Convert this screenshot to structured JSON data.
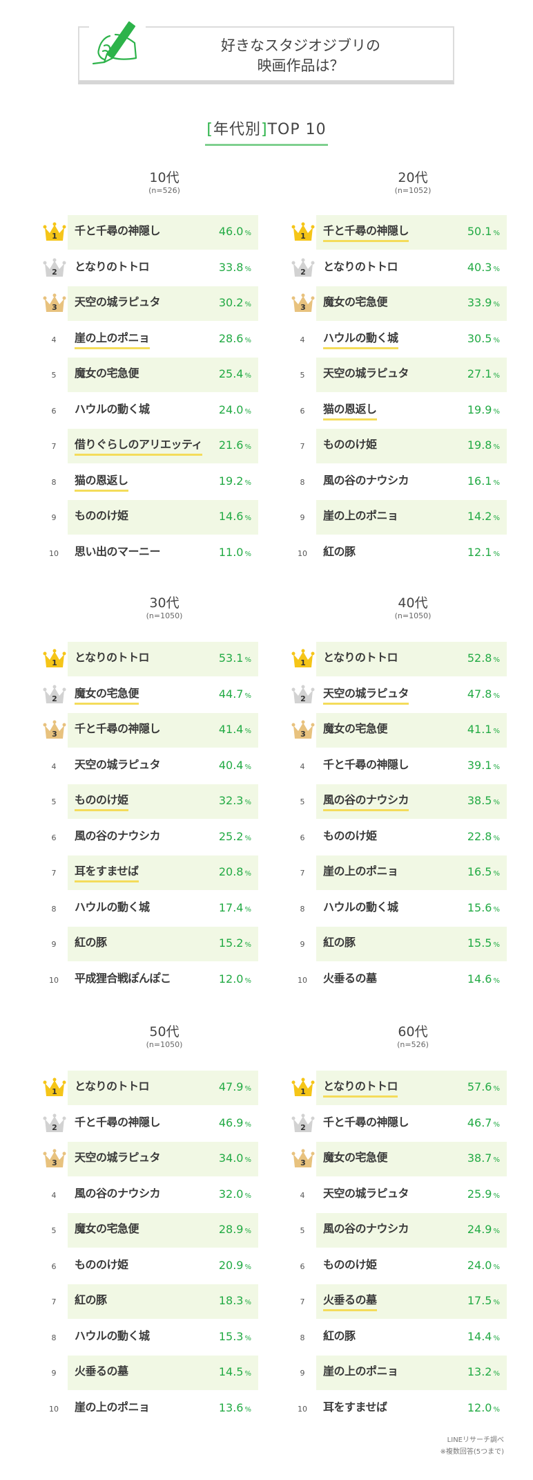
{
  "header": {
    "title_line1": "好きなスタジオジブリの",
    "title_line2": "映画作品は？",
    "icon": "hand-writing-pen-icon",
    "accent_color": "#2db34a"
  },
  "heading": {
    "bracket_open": "[",
    "label": "年代別",
    "bracket_close": "]",
    "suffix": "TOP 10"
  },
  "colors": {
    "percent": "#22aa44",
    "row_shade": "#f1f8e4",
    "highlight_underline": "#f4dc5a",
    "gold": "#f5c518",
    "silver": "#d2d2d2",
    "bronze": "#e8c27e"
  },
  "sections": [
    {
      "age": "10代",
      "n": "(n=526)",
      "items": [
        {
          "rank": "1",
          "title": "千と千尋の神隠し",
          "pct": "46.0",
          "hl": false
        },
        {
          "rank": "2",
          "title": "となりのトトロ",
          "pct": "33.8",
          "hl": false
        },
        {
          "rank": "3",
          "title": "天空の城ラピュタ",
          "pct": "30.2",
          "hl": false
        },
        {
          "rank": "4",
          "title": "崖の上のポニョ",
          "pct": "28.6",
          "hl": true
        },
        {
          "rank": "5",
          "title": "魔女の宅急便",
          "pct": "25.4",
          "hl": false
        },
        {
          "rank": "6",
          "title": "ハウルの動く城",
          "pct": "24.0",
          "hl": false
        },
        {
          "rank": "7",
          "title": "借りぐらしのアリエッティ",
          "pct": "21.6",
          "hl": true
        },
        {
          "rank": "8",
          "title": "猫の恩返し",
          "pct": "19.2",
          "hl": true
        },
        {
          "rank": "9",
          "title": "もののけ姫",
          "pct": "14.6",
          "hl": false
        },
        {
          "rank": "10",
          "title": "思い出のマーニー",
          "pct": "11.0",
          "hl": false
        }
      ]
    },
    {
      "age": "20代",
      "n": "(n=1052)",
      "items": [
        {
          "rank": "1",
          "title": "千と千尋の神隠し",
          "pct": "50.1",
          "hl": true
        },
        {
          "rank": "2",
          "title": "となりのトトロ",
          "pct": "40.3",
          "hl": false
        },
        {
          "rank": "3",
          "title": "魔女の宅急便",
          "pct": "33.9",
          "hl": false
        },
        {
          "rank": "4",
          "title": "ハウルの動く城",
          "pct": "30.5",
          "hl": true
        },
        {
          "rank": "5",
          "title": "天空の城ラピュタ",
          "pct": "27.1",
          "hl": false
        },
        {
          "rank": "6",
          "title": "猫の恩返し",
          "pct": "19.9",
          "hl": true
        },
        {
          "rank": "7",
          "title": "もののけ姫",
          "pct": "19.8",
          "hl": false
        },
        {
          "rank": "8",
          "title": "風の谷のナウシカ",
          "pct": "16.1",
          "hl": false
        },
        {
          "rank": "9",
          "title": "崖の上のポニョ",
          "pct": "14.2",
          "hl": false
        },
        {
          "rank": "10",
          "title": "紅の豚",
          "pct": "12.1",
          "hl": false
        }
      ]
    },
    {
      "age": "30代",
      "n": "(n=1050)",
      "items": [
        {
          "rank": "1",
          "title": "となりのトトロ",
          "pct": "53.1",
          "hl": false
        },
        {
          "rank": "2",
          "title": "魔女の宅急便",
          "pct": "44.7",
          "hl": true
        },
        {
          "rank": "3",
          "title": "千と千尋の神隠し",
          "pct": "41.4",
          "hl": false
        },
        {
          "rank": "4",
          "title": "天空の城ラピュタ",
          "pct": "40.4",
          "hl": false
        },
        {
          "rank": "5",
          "title": "もののけ姫",
          "pct": "32.3",
          "hl": true
        },
        {
          "rank": "6",
          "title": "風の谷のナウシカ",
          "pct": "25.2",
          "hl": false
        },
        {
          "rank": "7",
          "title": "耳をすませば",
          "pct": "20.8",
          "hl": true
        },
        {
          "rank": "8",
          "title": "ハウルの動く城",
          "pct": "17.4",
          "hl": false
        },
        {
          "rank": "9",
          "title": "紅の豚",
          "pct": "15.2",
          "hl": false
        },
        {
          "rank": "10",
          "title": "平成狸合戦ぽんぽこ",
          "pct": "12.0",
          "hl": false
        }
      ]
    },
    {
      "age": "40代",
      "n": "(n=1050)",
      "items": [
        {
          "rank": "1",
          "title": "となりのトトロ",
          "pct": "52.8",
          "hl": false
        },
        {
          "rank": "2",
          "title": "天空の城ラピュタ",
          "pct": "47.8",
          "hl": true
        },
        {
          "rank": "3",
          "title": "魔女の宅急便",
          "pct": "41.1",
          "hl": false
        },
        {
          "rank": "4",
          "title": "千と千尋の神隠し",
          "pct": "39.1",
          "hl": false
        },
        {
          "rank": "5",
          "title": "風の谷のナウシカ",
          "pct": "38.5",
          "hl": true
        },
        {
          "rank": "6",
          "title": "もののけ姫",
          "pct": "22.8",
          "hl": false
        },
        {
          "rank": "7",
          "title": "崖の上のポニョ",
          "pct": "16.5",
          "hl": false
        },
        {
          "rank": "8",
          "title": "ハウルの動く城",
          "pct": "15.6",
          "hl": false
        },
        {
          "rank": "9",
          "title": "紅の豚",
          "pct": "15.5",
          "hl": false
        },
        {
          "rank": "10",
          "title": "火垂るの墓",
          "pct": "14.6",
          "hl": false
        }
      ]
    },
    {
      "age": "50代",
      "n": "(n=1050)",
      "items": [
        {
          "rank": "1",
          "title": "となりのトトロ",
          "pct": "47.9",
          "hl": false
        },
        {
          "rank": "2",
          "title": "千と千尋の神隠し",
          "pct": "46.9",
          "hl": false
        },
        {
          "rank": "3",
          "title": "天空の城ラピュタ",
          "pct": "34.0",
          "hl": false
        },
        {
          "rank": "4",
          "title": "風の谷のナウシカ",
          "pct": "32.0",
          "hl": false
        },
        {
          "rank": "5",
          "title": "魔女の宅急便",
          "pct": "28.9",
          "hl": false
        },
        {
          "rank": "6",
          "title": "もののけ姫",
          "pct": "20.9",
          "hl": false
        },
        {
          "rank": "7",
          "title": "紅の豚",
          "pct": "18.3",
          "hl": false
        },
        {
          "rank": "8",
          "title": "ハウルの動く城",
          "pct": "15.3",
          "hl": false
        },
        {
          "rank": "9",
          "title": "火垂るの墓",
          "pct": "14.5",
          "hl": false
        },
        {
          "rank": "10",
          "title": "崖の上のポニョ",
          "pct": "13.6",
          "hl": false
        }
      ]
    },
    {
      "age": "60代",
      "n": "(n=526)",
      "items": [
        {
          "rank": "1",
          "title": "となりのトトロ",
          "pct": "57.6",
          "hl": true
        },
        {
          "rank": "2",
          "title": "千と千尋の神隠し",
          "pct": "46.7",
          "hl": false
        },
        {
          "rank": "3",
          "title": "魔女の宅急便",
          "pct": "38.7",
          "hl": false
        },
        {
          "rank": "4",
          "title": "天空の城ラピュタ",
          "pct": "25.9",
          "hl": false
        },
        {
          "rank": "5",
          "title": "風の谷のナウシカ",
          "pct": "24.9",
          "hl": false
        },
        {
          "rank": "6",
          "title": "もののけ姫",
          "pct": "24.0",
          "hl": false
        },
        {
          "rank": "7",
          "title": "火垂るの墓",
          "pct": "17.5",
          "hl": true
        },
        {
          "rank": "8",
          "title": "紅の豚",
          "pct": "14.4",
          "hl": false
        },
        {
          "rank": "9",
          "title": "崖の上のポニョ",
          "pct": "13.2",
          "hl": false
        },
        {
          "rank": "10",
          "title": "耳をすませば",
          "pct": "12.0",
          "hl": false
        }
      ]
    }
  ],
  "percent_unit": "%",
  "footer": {
    "source": "LINEリサーチ調べ",
    "note": "※複数回答(5つまで)"
  },
  "chart_data": {
    "type": "table",
    "title": "好きなスタジオジブリの映画作品は？ [年代別]TOP 10",
    "columns": [
      "rank",
      "title",
      "percent"
    ],
    "unit": "%",
    "groups": [
      {
        "name": "10代",
        "n": 526,
        "titles": [
          "千と千尋の神隠し",
          "となりのトトロ",
          "天空の城ラピュタ",
          "崖の上のポニョ",
          "魔女の宅急便",
          "ハウルの動く城",
          "借りぐらしのアリエッティ",
          "猫の恩返し",
          "もののけ姫",
          "思い出のマーニー"
        ],
        "values": [
          46.0,
          33.8,
          30.2,
          28.6,
          25.4,
          24.0,
          21.6,
          19.2,
          14.6,
          11.0
        ]
      },
      {
        "name": "20代",
        "n": 1052,
        "titles": [
          "千と千尋の神隠し",
          "となりのトトロ",
          "魔女の宅急便",
          "ハウルの動く城",
          "天空の城ラピュタ",
          "猫の恩返し",
          "もののけ姫",
          "風の谷のナウシカ",
          "崖の上のポニョ",
          "紅の豚"
        ],
        "values": [
          50.1,
          40.3,
          33.9,
          30.5,
          27.1,
          19.9,
          19.8,
          16.1,
          14.2,
          12.1
        ]
      },
      {
        "name": "30代",
        "n": 1050,
        "titles": [
          "となりのトトロ",
          "魔女の宅急便",
          "千と千尋の神隠し",
          "天空の城ラピュタ",
          "もののけ姫",
          "風の谷のナウシカ",
          "耳をすませば",
          "ハウルの動く城",
          "紅の豚",
          "平成狸合戦ぽんぽこ"
        ],
        "values": [
          53.1,
          44.7,
          41.4,
          40.4,
          32.3,
          25.2,
          20.8,
          17.4,
          15.2,
          12.0
        ]
      },
      {
        "name": "40代",
        "n": 1050,
        "titles": [
          "となりのトトロ",
          "天空の城ラピュタ",
          "魔女の宅急便",
          "千と千尋の神隠し",
          "風の谷のナウシカ",
          "もののけ姫",
          "崖の上のポニョ",
          "ハウルの動く城",
          "紅の豚",
          "火垂るの墓"
        ],
        "values": [
          52.8,
          47.8,
          41.1,
          39.1,
          38.5,
          22.8,
          16.5,
          15.6,
          15.5,
          14.6
        ]
      },
      {
        "name": "50代",
        "n": 1050,
        "titles": [
          "となりのトトロ",
          "千と千尋の神隠し",
          "天空の城ラピュタ",
          "風の谷のナウシカ",
          "魔女の宅急便",
          "もののけ姫",
          "紅の豚",
          "ハウルの動く城",
          "火垂るの墓",
          "崖の上のポニョ"
        ],
        "values": [
          47.9,
          46.9,
          34.0,
          32.0,
          28.9,
          20.9,
          18.3,
          15.3,
          14.5,
          13.6
        ]
      },
      {
        "name": "60代",
        "n": 526,
        "titles": [
          "となりのトトロ",
          "千と千尋の神隠し",
          "魔女の宅急便",
          "天空の城ラピュタ",
          "風の谷のナウシカ",
          "もののけ姫",
          "火垂るの墓",
          "紅の豚",
          "崖の上のポニョ",
          "耳をすませば"
        ],
        "values": [
          57.6,
          46.7,
          38.7,
          25.9,
          24.9,
          24.0,
          17.5,
          14.4,
          13.2,
          12.0
        ]
      }
    ],
    "footnotes": [
      "LINEリサーチ調べ",
      "※複数回答(5つまで)"
    ]
  }
}
